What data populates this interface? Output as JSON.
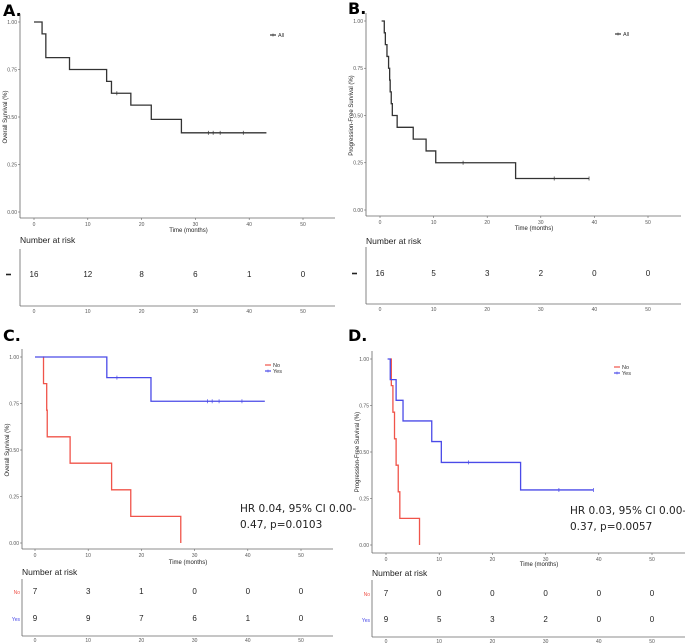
{
  "chart_data": [
    {
      "panel": "A.",
      "type": "line",
      "subtype": "kaplan-meier",
      "ylabel": "Overall Survival (%)",
      "xlabel": "Time (months)",
      "xlim": [
        0,
        55
      ],
      "ylim": [
        0,
        1
      ],
      "xticks": [
        "0",
        "10",
        "20",
        "30",
        "40",
        "50"
      ],
      "yticks": [
        "0.00",
        "0.25",
        "0.50",
        "0.75",
        "1.00"
      ],
      "legend": {
        "position": "top-right",
        "entries": [
          {
            "name": "All",
            "color": "#333333"
          }
        ]
      },
      "series": [
        {
          "name": "All",
          "color": "#333333",
          "steps": [
            [
              0,
              1.0
            ],
            [
              1.5,
              0.9375
            ],
            [
              2.2,
              0.8125
            ],
            [
              6.6,
              0.75
            ],
            [
              13.5,
              0.6875
            ],
            [
              14.4,
              0.625
            ],
            [
              18.0,
              0.5625
            ],
            [
              21.8,
              0.4875
            ],
            [
              27.4,
              0.4167
            ],
            [
              43.2,
              0.4167
            ]
          ],
          "censors": [
            [
              15.4,
              0.625
            ],
            [
              32.4,
              0.4167
            ],
            [
              33.3,
              0.4167
            ],
            [
              34.6,
              0.4167
            ],
            [
              38.9,
              0.4167
            ]
          ]
        }
      ],
      "risk_table": {
        "title": "Number at risk",
        "times": [
          "0",
          "10",
          "20",
          "30",
          "40",
          "50"
        ],
        "rows": [
          {
            "label": "–",
            "color": "#333333",
            "values": [
              "16",
              "12",
              "8",
              "6",
              "1",
              "0"
            ]
          }
        ]
      }
    },
    {
      "panel": "B.",
      "type": "line",
      "subtype": "kaplan-meier",
      "ylabel": "Progression-Free Survival (%)",
      "xlabel": "Time (months)",
      "xlim": [
        0,
        55
      ],
      "ylim": [
        0,
        1
      ],
      "xticks": [
        "0",
        "10",
        "20",
        "30",
        "40",
        "50"
      ],
      "yticks": [
        "0.00",
        "0.25",
        "0.50",
        "0.75",
        "1.00"
      ],
      "legend": {
        "position": "top-right",
        "entries": [
          {
            "name": "All",
            "color": "#333333"
          }
        ]
      },
      "series": [
        {
          "name": "All",
          "color": "#333333",
          "steps": [
            [
              0.3,
              1.0
            ],
            [
              0.8,
              0.9375
            ],
            [
              1.0,
              0.875
            ],
            [
              1.3,
              0.8125
            ],
            [
              1.6,
              0.75
            ],
            [
              1.8,
              0.6875
            ],
            [
              1.9,
              0.625
            ],
            [
              2.1,
              0.5625
            ],
            [
              2.3,
              0.5
            ],
            [
              3.2,
              0.4375
            ],
            [
              6.2,
              0.375
            ],
            [
              8.6,
              0.3125
            ],
            [
              10.4,
              0.25
            ],
            [
              25.3,
              0.1667
            ],
            [
              39.0,
              0.1667
            ]
          ],
          "censors": [
            [
              15.5,
              0.25
            ],
            [
              32.5,
              0.1667
            ],
            [
              39.0,
              0.1667
            ]
          ]
        }
      ],
      "risk_table": {
        "title": "Number at risk",
        "times": [
          "0",
          "10",
          "20",
          "30",
          "40",
          "50"
        ],
        "rows": [
          {
            "label": "–",
            "color": "#333333",
            "values": [
              "16",
              "5",
              "3",
              "2",
              "0",
              "0"
            ]
          }
        ]
      }
    },
    {
      "panel": "C.",
      "type": "line",
      "subtype": "kaplan-meier",
      "ylabel": "Overall Survival (%)",
      "xlabel": "Time (months)",
      "xlim": [
        0,
        55
      ],
      "ylim": [
        0,
        1
      ],
      "xticks": [
        "0",
        "10",
        "20",
        "30",
        "40",
        "50"
      ],
      "yticks": [
        "0.00",
        "0.25",
        "0.50",
        "0.75",
        "1.00"
      ],
      "legend": {
        "position": "top-right",
        "entries": [
          {
            "name": "No",
            "color": "#f0544a"
          },
          {
            "name": "Yes",
            "color": "#4a4ae8"
          }
        ]
      },
      "annotation": [
        "HR 0.04, 95% CI 0.00-",
        "0.47, p=0.0103"
      ],
      "series": [
        {
          "name": "No",
          "color": "#f0544a",
          "steps": [
            [
              1.5,
              1.0
            ],
            [
              1.6,
              0.857
            ],
            [
              2.2,
              0.714
            ],
            [
              2.3,
              0.571
            ],
            [
              6.6,
              0.429
            ],
            [
              14.4,
              0.286
            ],
            [
              18.0,
              0.143
            ],
            [
              27.4,
              0.143
            ],
            [
              27.4,
              0.0
            ]
          ],
          "censors": []
        },
        {
          "name": "Yes",
          "color": "#4a4ae8",
          "steps": [
            [
              0,
              1.0
            ],
            [
              13.5,
              0.889
            ],
            [
              21.8,
              0.762
            ],
            [
              43.2,
              0.762
            ]
          ],
          "censors": [
            [
              15.4,
              0.889
            ],
            [
              32.4,
              0.762
            ],
            [
              33.3,
              0.762
            ],
            [
              34.6,
              0.762
            ],
            [
              38.9,
              0.762
            ]
          ]
        }
      ],
      "risk_table": {
        "title": "Number at risk",
        "times": [
          "0",
          "10",
          "20",
          "30",
          "40",
          "50"
        ],
        "rows": [
          {
            "label": "No",
            "color": "#f0544a",
            "values": [
              "7",
              "3",
              "1",
              "0",
              "0",
              "0"
            ]
          },
          {
            "label": "Yes",
            "color": "#4a4ae8",
            "values": [
              "9",
              "9",
              "7",
              "6",
              "1",
              "0"
            ]
          }
        ]
      }
    },
    {
      "panel": "D.",
      "type": "line",
      "subtype": "kaplan-meier",
      "ylabel": "Progression-Free Survival (%)",
      "xlabel": "Time (months)",
      "xlim": [
        0,
        55
      ],
      "ylim": [
        0,
        1
      ],
      "xticks": [
        "0",
        "10",
        "20",
        "30",
        "40",
        "50"
      ],
      "yticks": [
        "0.00",
        "0.25",
        "0.50",
        "0.75",
        "1.00"
      ],
      "legend": {
        "position": "top-right",
        "entries": [
          {
            "name": "No",
            "color": "#f0544a"
          },
          {
            "name": "Yes",
            "color": "#4a4ae8"
          }
        ]
      },
      "annotation": [
        "HR 0.03, 95% CI 0.00-",
        "0.37, p=0.0057"
      ],
      "series": [
        {
          "name": "No",
          "color": "#f0544a",
          "steps": [
            [
              0.8,
              1.0
            ],
            [
              1.0,
              0.857
            ],
            [
              1.3,
              0.714
            ],
            [
              1.6,
              0.571
            ],
            [
              1.9,
              0.429
            ],
            [
              2.3,
              0.286
            ],
            [
              2.6,
              0.143
            ],
            [
              6.3,
              0.143
            ],
            [
              6.3,
              0.0
            ]
          ],
          "censors": []
        },
        {
          "name": "Yes",
          "color": "#4a4ae8",
          "steps": [
            [
              0.3,
              1.0
            ],
            [
              0.8,
              0.889
            ],
            [
              1.9,
              0.778
            ],
            [
              3.2,
              0.667
            ],
            [
              8.6,
              0.556
            ],
            [
              10.4,
              0.444
            ],
            [
              25.3,
              0.296
            ],
            [
              39.0,
              0.296
            ]
          ],
          "censors": [
            [
              15.5,
              0.444
            ],
            [
              32.5,
              0.296
            ],
            [
              39.0,
              0.296
            ]
          ]
        }
      ],
      "risk_table": {
        "title": "Number at risk",
        "times": [
          "0",
          "10",
          "20",
          "30",
          "40",
          "50"
        ],
        "rows": [
          {
            "label": "No",
            "color": "#f0544a",
            "values": [
              "7",
              "0",
              "0",
              "0",
              "0",
              "0"
            ]
          },
          {
            "label": "Yes",
            "color": "#4a4ae8",
            "values": [
              "9",
              "5",
              "3",
              "2",
              "0",
              "0"
            ]
          }
        ]
      }
    }
  ]
}
